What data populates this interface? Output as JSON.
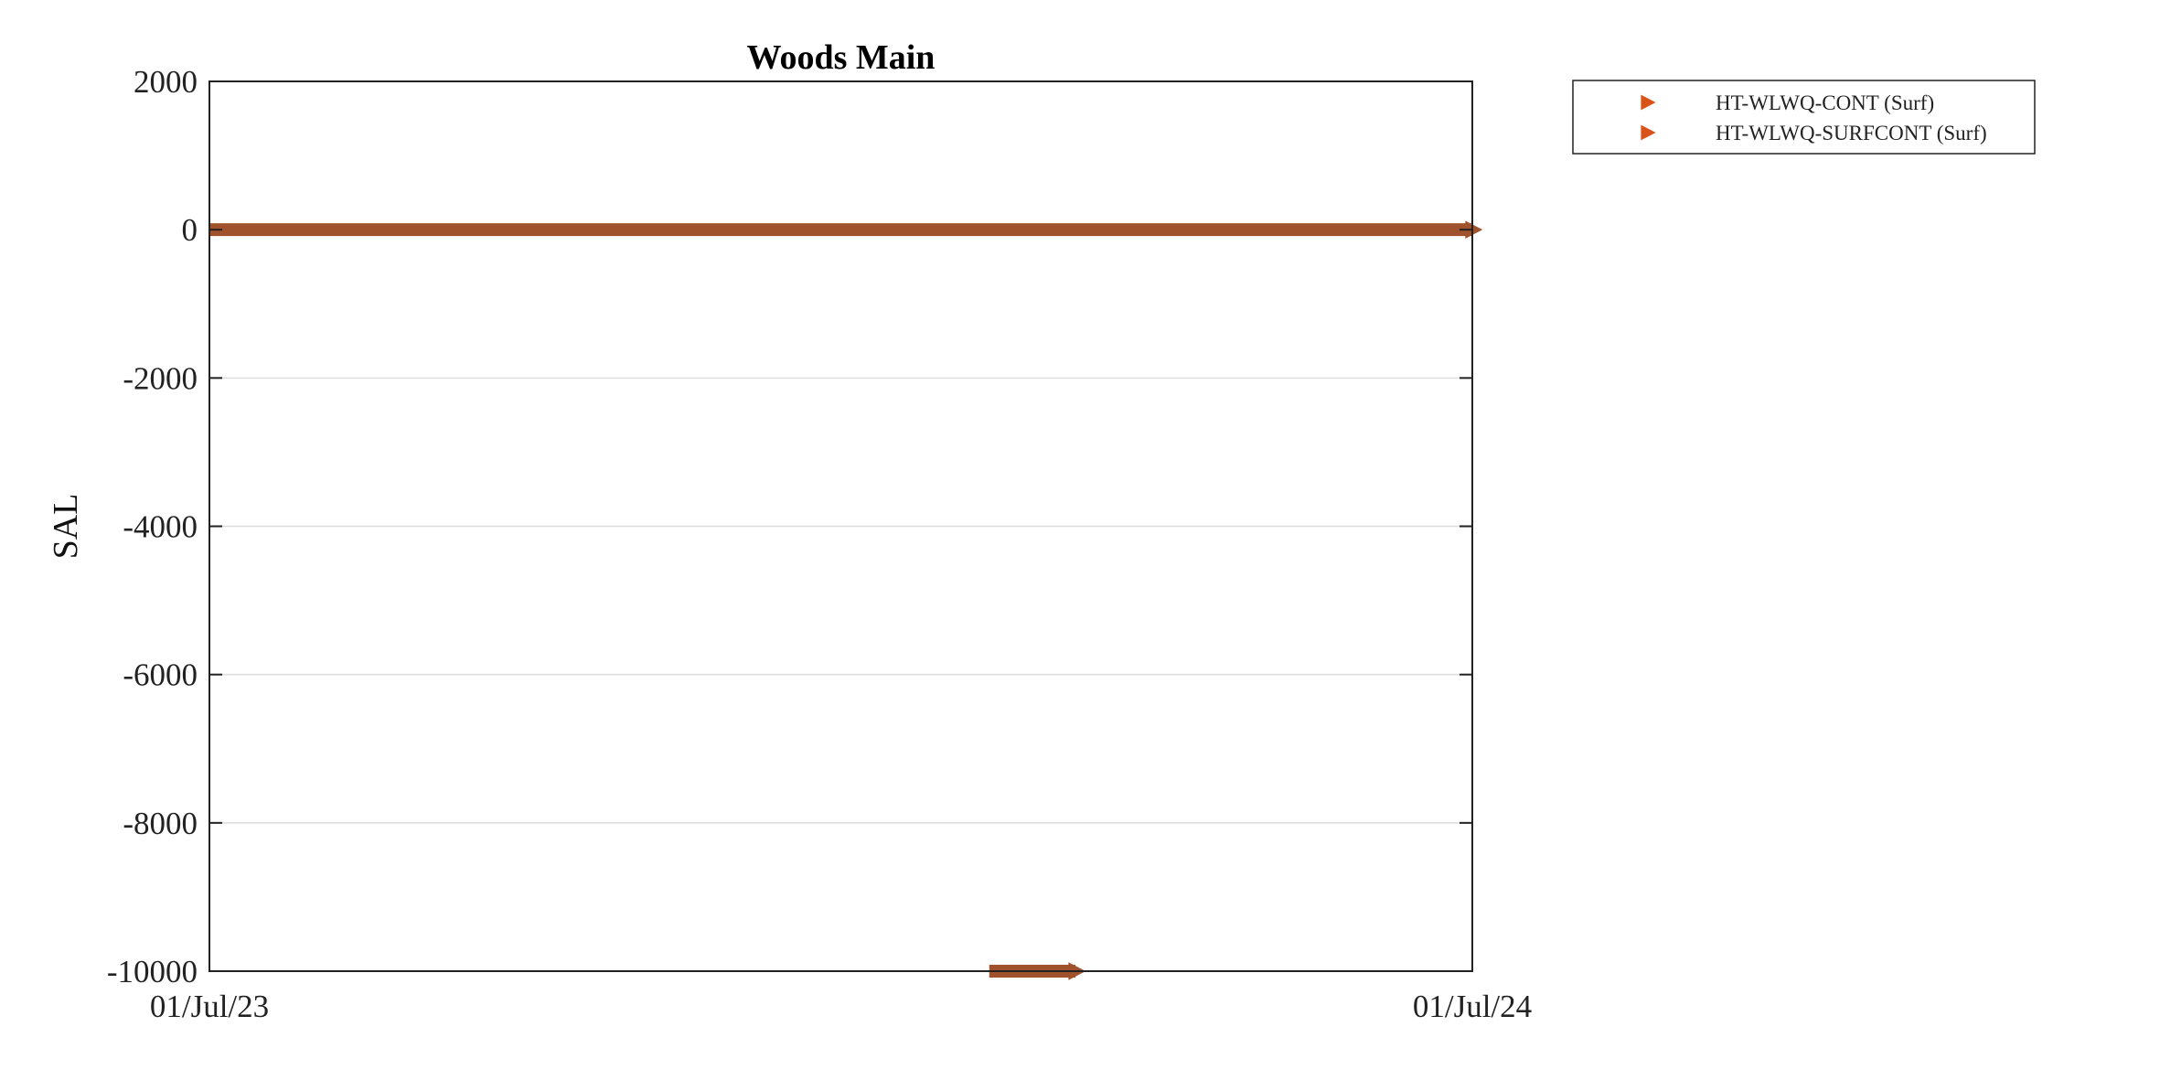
{
  "chart_data": {
    "type": "scatter",
    "title": "Woods Main",
    "xlabel": "",
    "ylabel": "SAL",
    "xlim": [
      "2023-07-01",
      "2024-07-01"
    ],
    "ylim": [
      -10000,
      2000
    ],
    "yticks": [
      2000,
      0,
      -2000,
      -4000,
      -6000,
      -8000,
      -10000
    ],
    "xticks": [
      "01/Jul/23",
      "01/Jul/24"
    ],
    "grid": "horizontal",
    "legend_position": "outside-top-right",
    "marker": "triangle-right",
    "series": [
      {
        "name": "HT-WLWQ-CONT (Surf)",
        "color": "#D95319",
        "segments": [],
        "points": [
          {
            "x": "2024-03-05",
            "y": 0
          },
          {
            "x": "2024-03-27",
            "y": 0
          },
          {
            "x": "2024-05-16",
            "y": 0
          }
        ]
      },
      {
        "name": "HT-WLWQ-SURFCONT (Surf)",
        "color": "#A0522D",
        "segments": [
          {
            "x_start": "2023-07-01",
            "x_end": "2024-07-01",
            "y": 0
          },
          {
            "x_start": "2024-02-12",
            "x_end": "2024-03-08",
            "y": -10000
          }
        ],
        "points": []
      }
    ]
  }
}
